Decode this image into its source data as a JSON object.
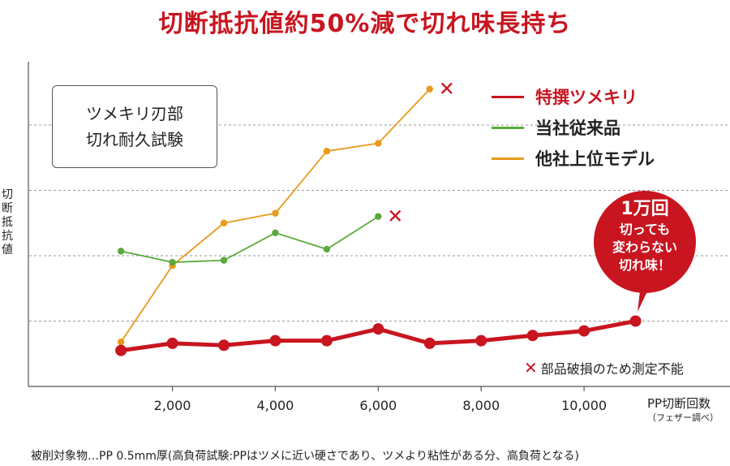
{
  "title": "切断抵抗値約50%減で切れ味長持ち",
  "test_box": {
    "line1": "ツメキリ刃部",
    "line2": "切れ耐久試験"
  },
  "callout": {
    "main": "1万回",
    "line2": "切っても",
    "line3": "変わらない",
    "line4": "切れ味！"
  },
  "note": {
    "marker": "✕",
    "text": "部品破損のため測定不能"
  },
  "footnote": "被削対象物…PP 0.5mm厚(高負荷試験:PPはツメに近い硬さであり、ツメより粘性がある分、高負荷となる)",
  "chart_data": {
    "type": "line",
    "title": "切断抵抗値約50%減で切れ味長持ち",
    "xlabel": "PP切断回数",
    "xlabel_sub": "（フェザー調べ）",
    "ylabel": "切断抵抗値",
    "xlim": [
      0,
      13000
    ],
    "ylim": [
      0,
      5
    ],
    "xticks": [
      2000,
      4000,
      6000,
      8000,
      10000
    ],
    "xtick_labels": [
      "2,000",
      "4,000",
      "6,000",
      "8,000",
      "10,000"
    ],
    "grid": "horizontal dashed",
    "legend_position": "top-right",
    "series": [
      {
        "name": "特撰ツメキリ",
        "color": "#c8151f",
        "x": [
          1000,
          2000,
          3000,
          4000,
          5000,
          6000,
          7000,
          8000,
          9000,
          10000,
          11000
        ],
        "y": [
          0.55,
          0.66,
          0.63,
          0.7,
          0.7,
          0.88,
          0.66,
          0.7,
          0.78,
          0.85,
          1.0
        ]
      },
      {
        "name": "当社従来品",
        "color": "#5aaa3c",
        "x": [
          1000,
          2000,
          3000,
          4000,
          5000,
          6000
        ],
        "y": [
          2.07,
          1.9,
          1.93,
          2.35,
          2.1,
          2.6
        ],
        "end_marker": "✕"
      },
      {
        "name": "他社上位モデル",
        "color": "#e89a1c",
        "x": [
          1000,
          2000,
          3000,
          4000,
          5000,
          6000,
          7000
        ],
        "y": [
          0.68,
          1.85,
          2.5,
          2.65,
          3.6,
          3.72,
          4.55
        ],
        "end_marker": "✕"
      }
    ]
  }
}
